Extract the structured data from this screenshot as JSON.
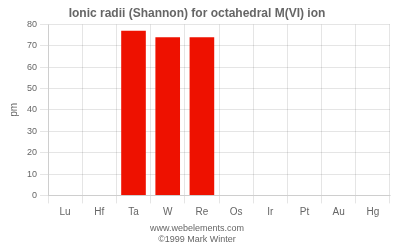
{
  "chart_data": {
    "type": "bar",
    "title": "Ionic radii (Shannon) for octahedral M(VI) ion",
    "ylabel": "pm",
    "categories": [
      "Lu",
      "Hf",
      "Ta",
      "W",
      "Re",
      "Os",
      "Ir",
      "Pt",
      "Au",
      "Hg"
    ],
    "values": [
      0,
      0,
      77,
      74,
      74,
      0,
      0,
      0,
      0,
      0
    ],
    "color": "#ee1100",
    "ylim": [
      0,
      80
    ],
    "yticks": [
      0,
      10,
      20,
      30,
      40,
      50,
      60,
      70,
      80
    ],
    "grid": true,
    "annotations": [
      "www.webelements.com",
      "©1999 Mark Winter"
    ]
  }
}
